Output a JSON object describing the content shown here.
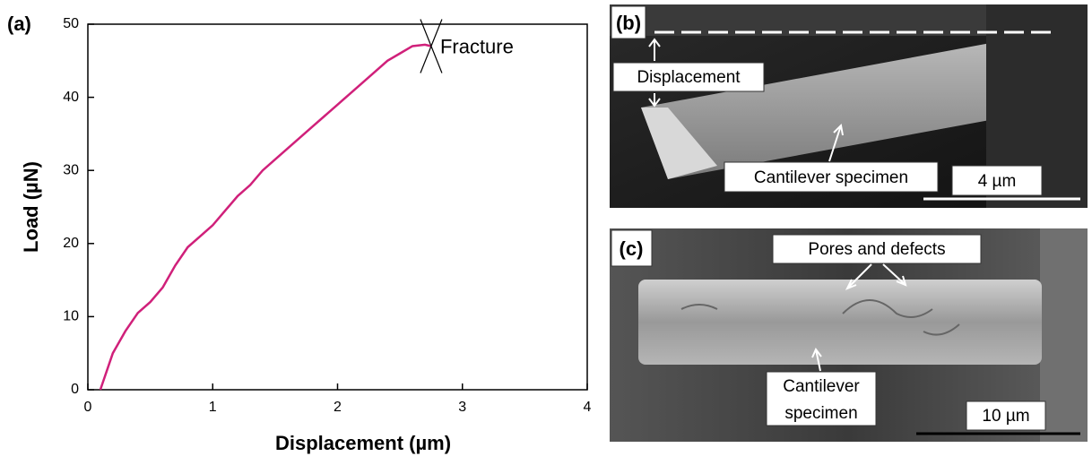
{
  "chart_data": {
    "type": "line",
    "panel_label": "(a)",
    "x_label": "Displacement (µm)",
    "y_label": "Load (µN)",
    "x": [
      0.1,
      0.2,
      0.3,
      0.4,
      0.5,
      0.6,
      0.7,
      0.8,
      0.9,
      1.0,
      1.1,
      1.2,
      1.3,
      1.4,
      1.5,
      1.6,
      1.7,
      1.8,
      1.9,
      2.0,
      2.1,
      2.2,
      2.3,
      2.4,
      2.5,
      2.6,
      2.7,
      2.75
    ],
    "values": [
      0,
      5,
      8,
      10.5,
      12,
      14,
      17,
      19.5,
      21,
      22.5,
      24.5,
      26.5,
      28,
      30,
      31.5,
      33,
      34.5,
      36,
      37.5,
      39,
      40.5,
      42,
      43.5,
      45,
      46,
      47,
      47.2,
      47
    ],
    "color": "#d0207a",
    "xlim": [
      0,
      4
    ],
    "ylim": [
      0,
      50
    ],
    "xticks": [
      0,
      1,
      2,
      3,
      4
    ],
    "yticks": [
      0,
      10,
      20,
      30,
      40,
      50
    ],
    "annotation": "Fracture"
  },
  "panels": [
    {
      "label": "(b)",
      "displacement": "Displacement",
      "specimen": "Cantilever specimen",
      "scale_bar": "4 µm"
    },
    {
      "label": "(c)",
      "defects": "Pores and defects",
      "specimen_line1": "Cantilever",
      "specimen_line2": "specimen",
      "scale_bar": "10 µm"
    }
  ]
}
